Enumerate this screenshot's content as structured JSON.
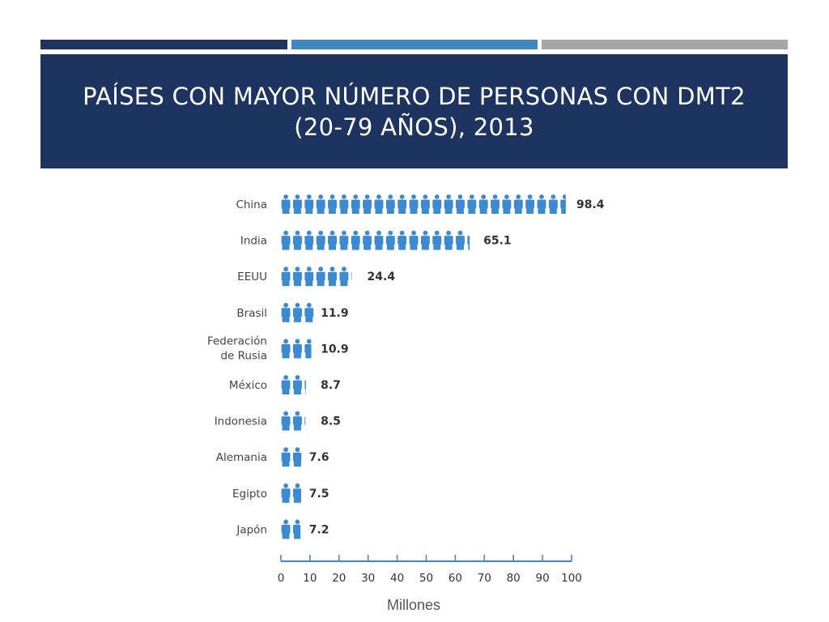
{
  "slide": {
    "title_line1": "PAÍSES CON MAYOR NÚMERO DE PERSONAS CON DMT2",
    "title_line2": "(20-79 AÑOS), 2013",
    "colors": {
      "band": "#1d3461",
      "accent_dark": "#1d3461",
      "accent_mid": "#3f87c0",
      "accent_gray": "#a6a6a6",
      "icon_blue": "#3d8ad1",
      "axis_blue": "#3d8ad1",
      "label_gray": "#444444"
    }
  },
  "chart_data": {
    "type": "bar",
    "orientation": "horizontal",
    "mark": "person-icon",
    "units_per_icon": 4,
    "categories": [
      "China",
      "India",
      "EEUU",
      "Brasil",
      "Federación de Rusia",
      "México",
      "Indonesia",
      "Alemania",
      "Egipto",
      "Japón"
    ],
    "category_lines": [
      [
        "China"
      ],
      [
        "India"
      ],
      [
        "EEUU"
      ],
      [
        "Brasil"
      ],
      [
        "Federación",
        "de Rusia"
      ],
      [
        "México"
      ],
      [
        "Indonesia"
      ],
      [
        "Alemania"
      ],
      [
        "Egipto"
      ],
      [
        "Japón"
      ]
    ],
    "values": [
      98.4,
      65.1,
      24.4,
      11.9,
      10.9,
      8.7,
      8.5,
      7.6,
      7.5,
      7.2
    ],
    "value_labels": [
      "98.4",
      "65.1",
      "24.4",
      "11.9",
      "10.9",
      "8.7",
      "8.5",
      "7.6",
      "7.5",
      "7.2"
    ],
    "xlabel": "Millones",
    "xlim": [
      0,
      100
    ],
    "xticks": [
      0,
      10,
      20,
      30,
      40,
      50,
      60,
      70,
      80,
      90,
      100
    ],
    "grid": false,
    "legend": "none"
  }
}
